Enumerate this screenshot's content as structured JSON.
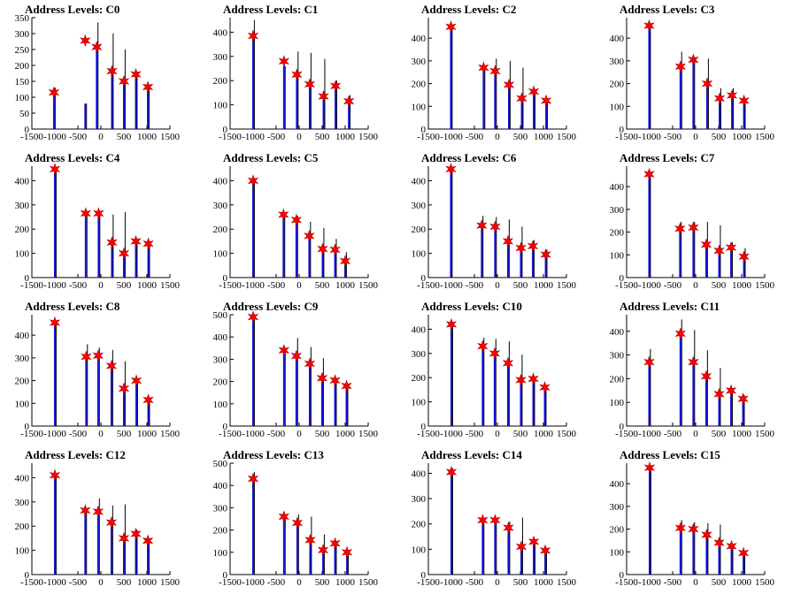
{
  "page": {
    "colors": {
      "bar": "#1010dd",
      "spike": "#000000",
      "star_fill": "#ff0000",
      "star_stroke": "#aa0000"
    }
  },
  "chart_data": [
    {
      "type": "bar",
      "title": "Address Levels: C0",
      "xlim": [
        -1500,
        1500
      ],
      "ylim": [
        0,
        350
      ],
      "yticks": [
        0,
        50,
        100,
        150,
        200,
        250,
        300,
        350
      ],
      "xticks": [
        -1500,
        -1000,
        -500,
        0,
        500,
        1000,
        1500
      ],
      "peaks": [
        {
          "x": -1020,
          "height": 130,
          "star": 115
        },
        {
          "x": -340,
          "height": 80,
          "star": 278
        },
        {
          "x": -90,
          "height": 335,
          "star": 258
        },
        {
          "x": 240,
          "height": 300,
          "star": 182
        },
        {
          "x": 500,
          "height": 250,
          "star": 150
        },
        {
          "x": 760,
          "height": 180,
          "star": 172
        },
        {
          "x": 1020,
          "height": 140,
          "star": 132
        }
      ]
    },
    {
      "type": "bar",
      "title": "Address Levels: C1",
      "xlim": [
        -1500,
        1500
      ],
      "ylim": [
        0,
        460
      ],
      "yticks": [
        0,
        100,
        200,
        300,
        400
      ],
      "xticks": [
        -1500,
        -1000,
        -500,
        0,
        500,
        1000,
        1500
      ],
      "peaks": [
        {
          "x": -1000,
          "height": 450,
          "star": 385
        },
        {
          "x": -330,
          "height": 260,
          "star": 280
        },
        {
          "x": -50,
          "height": 320,
          "star": 225
        },
        {
          "x": 230,
          "height": 315,
          "star": 185
        },
        {
          "x": 530,
          "height": 290,
          "star": 135
        },
        {
          "x": 790,
          "height": 200,
          "star": 178
        },
        {
          "x": 1080,
          "height": 140,
          "star": 115
        }
      ]
    },
    {
      "type": "bar",
      "title": "Address Levels: C2",
      "xlim": [
        -1500,
        1500
      ],
      "ylim": [
        0,
        490
      ],
      "yticks": [
        0,
        100,
        200,
        300,
        400
      ],
      "xticks": [
        -1500,
        -1000,
        -500,
        0,
        500,
        1000,
        1500
      ],
      "peaks": [
        {
          "x": -1010,
          "height": 450,
          "star": 450
        },
        {
          "x": -300,
          "height": 280,
          "star": 270
        },
        {
          "x": -50,
          "height": 310,
          "star": 255
        },
        {
          "x": 250,
          "height": 300,
          "star": 195
        },
        {
          "x": 530,
          "height": 270,
          "star": 135
        },
        {
          "x": 790,
          "height": 170,
          "star": 165
        },
        {
          "x": 1060,
          "height": 130,
          "star": 125
        }
      ]
    },
    {
      "type": "bar",
      "title": "Address Levels: C3",
      "xlim": [
        -1500,
        1500
      ],
      "ylim": [
        0,
        490
      ],
      "yticks": [
        0,
        100,
        200,
        300,
        400
      ],
      "xticks": [
        -1500,
        -1000,
        -500,
        0,
        500,
        1000,
        1500
      ],
      "peaks": [
        {
          "x": -1010,
          "height": 460,
          "star": 455
        },
        {
          "x": -330,
          "height": 340,
          "star": 275
        },
        {
          "x": -50,
          "height": 310,
          "star": 305
        },
        {
          "x": 250,
          "height": 310,
          "star": 200
        },
        {
          "x": 520,
          "height": 180,
          "star": 135
        },
        {
          "x": 790,
          "height": 180,
          "star": 148
        },
        {
          "x": 1050,
          "height": 130,
          "star": 125
        }
      ]
    },
    {
      "type": "bar",
      "title": "Address Levels: C4",
      "xlim": [
        -1500,
        1500
      ],
      "ylim": [
        0,
        460
      ],
      "yticks": [
        0,
        100,
        200,
        300,
        400
      ],
      "xticks": [
        -1500,
        -1000,
        -500,
        0,
        500,
        1000,
        1500
      ],
      "peaks": [
        {
          "x": -1000,
          "height": 450,
          "star": 448
        },
        {
          "x": -330,
          "height": 270,
          "star": 265
        },
        {
          "x": -50,
          "height": 265,
          "star": 265
        },
        {
          "x": 240,
          "height": 260,
          "star": 145
        },
        {
          "x": 500,
          "height": 270,
          "star": 100
        },
        {
          "x": 760,
          "height": 160,
          "star": 150
        },
        {
          "x": 1030,
          "height": 140,
          "star": 140
        }
      ]
    },
    {
      "type": "bar",
      "title": "Address Levels: C5",
      "xlim": [
        -1500,
        1500
      ],
      "ylim": [
        0,
        460
      ],
      "yticks": [
        0,
        100,
        200,
        300,
        400
      ],
      "xticks": [
        -1500,
        -1000,
        -500,
        0,
        500,
        1000,
        1500
      ],
      "peaks": [
        {
          "x": -1000,
          "height": 400,
          "star": 400
        },
        {
          "x": -340,
          "height": 250,
          "star": 260
        },
        {
          "x": -60,
          "height": 255,
          "star": 238
        },
        {
          "x": 220,
          "height": 230,
          "star": 172
        },
        {
          "x": 510,
          "height": 205,
          "star": 118
        },
        {
          "x": 780,
          "height": 160,
          "star": 115
        },
        {
          "x": 1000,
          "height": 105,
          "star": 68
        }
      ]
    },
    {
      "type": "bar",
      "title": "Address Levels: C6",
      "xlim": [
        -1500,
        1500
      ],
      "ylim": [
        0,
        460
      ],
      "yticks": [
        0,
        100,
        200,
        300,
        400
      ],
      "xticks": [
        -1500,
        -1000,
        -500,
        0,
        500,
        1000,
        1500
      ],
      "peaks": [
        {
          "x": -1010,
          "height": 450,
          "star": 448
        },
        {
          "x": -340,
          "height": 255,
          "star": 215
        },
        {
          "x": -50,
          "height": 250,
          "star": 210
        },
        {
          "x": 230,
          "height": 240,
          "star": 150
        },
        {
          "x": 510,
          "height": 210,
          "star": 122
        },
        {
          "x": 770,
          "height": 155,
          "star": 130
        },
        {
          "x": 1050,
          "height": 115,
          "star": 95
        }
      ]
    },
    {
      "type": "bar",
      "title": "Address Levels: C7",
      "xlim": [
        -1500,
        1500
      ],
      "ylim": [
        0,
        490
      ],
      "yticks": [
        0,
        100,
        200,
        300,
        400
      ],
      "xticks": [
        -1500,
        -1000,
        -500,
        0,
        500,
        1000,
        1500
      ],
      "peaks": [
        {
          "x": -1010,
          "height": 460,
          "star": 455
        },
        {
          "x": -340,
          "height": 245,
          "star": 215
        },
        {
          "x": -50,
          "height": 245,
          "star": 220
        },
        {
          "x": 230,
          "height": 245,
          "star": 145
        },
        {
          "x": 510,
          "height": 230,
          "star": 118
        },
        {
          "x": 770,
          "height": 155,
          "star": 132
        },
        {
          "x": 1050,
          "height": 130,
          "star": 92
        }
      ]
    },
    {
      "type": "bar",
      "title": "Address Levels: C8",
      "xlim": [
        -1500,
        1500
      ],
      "ylim": [
        0,
        490
      ],
      "yticks": [
        0,
        100,
        200,
        300,
        400
      ],
      "xticks": [
        -1500,
        -1000,
        -500,
        0,
        500,
        1000,
        1500
      ],
      "peaks": [
        {
          "x": -1000,
          "height": 460,
          "star": 455
        },
        {
          "x": -320,
          "height": 360,
          "star": 305
        },
        {
          "x": -60,
          "height": 345,
          "star": 310
        },
        {
          "x": 230,
          "height": 335,
          "star": 265
        },
        {
          "x": 500,
          "height": 285,
          "star": 165
        },
        {
          "x": 770,
          "height": 205,
          "star": 200
        },
        {
          "x": 1030,
          "height": 120,
          "star": 115
        }
      ]
    },
    {
      "type": "bar",
      "title": "Address Levels: C9",
      "xlim": [
        -1500,
        1500
      ],
      "ylim": [
        0,
        500
      ],
      "yticks": [
        0,
        100,
        200,
        300,
        400,
        500
      ],
      "xticks": [
        -1500,
        -1000,
        -500,
        0,
        500,
        1000,
        1500
      ],
      "peaks": [
        {
          "x": -1000,
          "height": 490,
          "star": 490
        },
        {
          "x": -330,
          "height": 345,
          "star": 340
        },
        {
          "x": -60,
          "height": 395,
          "star": 315
        },
        {
          "x": 230,
          "height": 355,
          "star": 280
        },
        {
          "x": 500,
          "height": 305,
          "star": 215
        },
        {
          "x": 780,
          "height": 215,
          "star": 205
        },
        {
          "x": 1030,
          "height": 185,
          "star": 180
        }
      ]
    },
    {
      "type": "bar",
      "title": "Address Levels: C10",
      "xlim": [
        -1500,
        1500
      ],
      "ylim": [
        0,
        460
      ],
      "yticks": [
        0,
        100,
        200,
        300,
        400
      ],
      "xticks": [
        -1500,
        -1000,
        -500,
        0,
        500,
        1000,
        1500
      ],
      "peaks": [
        {
          "x": -1000,
          "height": 420,
          "star": 420
        },
        {
          "x": -320,
          "height": 365,
          "star": 330
        },
        {
          "x": -60,
          "height": 360,
          "star": 300
        },
        {
          "x": 230,
          "height": 350,
          "star": 260
        },
        {
          "x": 510,
          "height": 295,
          "star": 190
        },
        {
          "x": 780,
          "height": 200,
          "star": 195
        },
        {
          "x": 1030,
          "height": 165,
          "star": 160
        }
      ]
    },
    {
      "type": "bar",
      "title": "Address Levels: C11",
      "xlim": [
        -1500,
        1500
      ],
      "ylim": [
        0,
        470
      ],
      "yticks": [
        0,
        100,
        200,
        300,
        400
      ],
      "xticks": [
        -1500,
        -1000,
        -500,
        0,
        500,
        1000,
        1500
      ],
      "peaks": [
        {
          "x": -1010,
          "height": 325,
          "star": 270
        },
        {
          "x": -330,
          "height": 450,
          "star": 390
        },
        {
          "x": -50,
          "height": 405,
          "star": 270
        },
        {
          "x": 230,
          "height": 320,
          "star": 210
        },
        {
          "x": 510,
          "height": 245,
          "star": 135
        },
        {
          "x": 770,
          "height": 160,
          "star": 150
        },
        {
          "x": 1030,
          "height": 130,
          "star": 115
        }
      ]
    },
    {
      "type": "bar",
      "title": "Address Levels: C12",
      "xlim": [
        -1500,
        1500
      ],
      "ylim": [
        0,
        460
      ],
      "yticks": [
        0,
        100,
        200,
        300,
        400
      ],
      "xticks": [
        -1500,
        -1000,
        -500,
        0,
        500,
        1000,
        1500
      ],
      "peaks": [
        {
          "x": -1000,
          "height": 415,
          "star": 410
        },
        {
          "x": -340,
          "height": 270,
          "star": 265
        },
        {
          "x": -60,
          "height": 315,
          "star": 260
        },
        {
          "x": 230,
          "height": 285,
          "star": 215
        },
        {
          "x": 500,
          "height": 290,
          "star": 150
        },
        {
          "x": 760,
          "height": 185,
          "star": 168
        },
        {
          "x": 1020,
          "height": 150,
          "star": 140
        }
      ]
    },
    {
      "type": "bar",
      "title": "Address Levels: C13",
      "xlim": [
        -1500,
        1500
      ],
      "ylim": [
        0,
        500
      ],
      "yticks": [
        0,
        100,
        200,
        300,
        400,
        500
      ],
      "xticks": [
        -1500,
        -1000,
        -500,
        0,
        500,
        1000,
        1500
      ],
      "peaks": [
        {
          "x": -1000,
          "height": 460,
          "star": 430
        },
        {
          "x": -330,
          "height": 265,
          "star": 260
        },
        {
          "x": -40,
          "height": 270,
          "star": 232
        },
        {
          "x": 240,
          "height": 260,
          "star": 155
        },
        {
          "x": 520,
          "height": 180,
          "star": 110
        },
        {
          "x": 780,
          "height": 140,
          "star": 140
        },
        {
          "x": 1040,
          "height": 110,
          "star": 100
        }
      ]
    },
    {
      "type": "bar",
      "title": "Address Levels: C14",
      "xlim": [
        -1500,
        1500
      ],
      "ylim": [
        0,
        440
      ],
      "yticks": [
        0,
        100,
        200,
        300,
        400
      ],
      "xticks": [
        -1500,
        -1000,
        -500,
        0,
        500,
        1000,
        1500
      ],
      "peaks": [
        {
          "x": -1000,
          "height": 420,
          "star": 405
        },
        {
          "x": -320,
          "height": 220,
          "star": 215
        },
        {
          "x": -50,
          "height": 220,
          "star": 215
        },
        {
          "x": 240,
          "height": 210,
          "star": 185
        },
        {
          "x": 520,
          "height": 225,
          "star": 110
        },
        {
          "x": 790,
          "height": 140,
          "star": 130
        },
        {
          "x": 1040,
          "height": 105,
          "star": 95
        }
      ]
    },
    {
      "type": "bar",
      "title": "Address Levels: C15",
      "xlim": [
        -1500,
        1500
      ],
      "ylim": [
        0,
        490
      ],
      "yticks": [
        0,
        100,
        200,
        300,
        400
      ],
      "xticks": [
        -1500,
        -1000,
        -500,
        0,
        500,
        1000,
        1500
      ],
      "peaks": [
        {
          "x": -1000,
          "height": 470,
          "star": 470
        },
        {
          "x": -330,
          "height": 240,
          "star": 205
        },
        {
          "x": -50,
          "height": 230,
          "star": 200
        },
        {
          "x": 240,
          "height": 225,
          "star": 175
        },
        {
          "x": 510,
          "height": 220,
          "star": 140
        },
        {
          "x": 780,
          "height": 130,
          "star": 125
        },
        {
          "x": 1040,
          "height": 105,
          "star": 95
        }
      ]
    }
  ]
}
